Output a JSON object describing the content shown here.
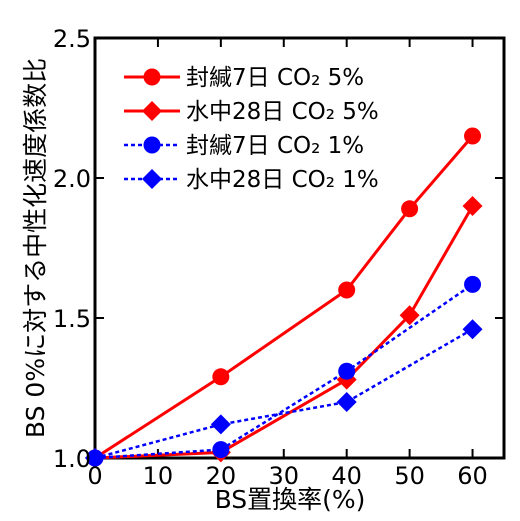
{
  "chart_data": {
    "type": "line",
    "xlabel": "BS置換率(%)",
    "ylabel": "BS 0%に対する中性化速度係数比",
    "xlim": [
      0,
      65
    ],
    "ylim": [
      1.0,
      2.5
    ],
    "xticks": [
      0,
      10,
      20,
      30,
      40,
      50,
      60
    ],
    "yticks": [
      1.0,
      1.5,
      2.0,
      2.5
    ],
    "x_tick_labels": [
      "0",
      "10",
      "20",
      "30",
      "40",
      "50",
      "60"
    ],
    "y_tick_labels": [
      "1.0",
      "1.5",
      "2.0",
      "2.5"
    ],
    "legend_position": "top-left",
    "grid": false,
    "series": [
      {
        "name": "封緘7日 CO₂ 5%",
        "x": [
          0,
          20,
          40,
          50,
          60
        ],
        "y": [
          1.0,
          1.29,
          1.6,
          1.89,
          2.15
        ],
        "color": "#ff0000",
        "marker": "circle",
        "line": "solid"
      },
      {
        "name": "水中28日 CO₂ 5%",
        "x": [
          0,
          20,
          40,
          50,
          60
        ],
        "y": [
          1.0,
          1.02,
          1.28,
          1.51,
          1.9
        ],
        "color": "#ff0000",
        "marker": "diamond",
        "line": "solid"
      },
      {
        "name": "封緘7日 CO₂ 1%",
        "x": [
          0,
          20,
          40,
          60
        ],
        "y": [
          1.0,
          1.03,
          1.31,
          1.62
        ],
        "color": "#0000ff",
        "marker": "circle",
        "line": "dotted"
      },
      {
        "name": "水中28日 CO₂ 1%",
        "x": [
          0,
          20,
          40,
          60
        ],
        "y": [
          1.0,
          1.12,
          1.2,
          1.46
        ],
        "color": "#0000ff",
        "marker": "diamond",
        "line": "dotted"
      }
    ]
  }
}
